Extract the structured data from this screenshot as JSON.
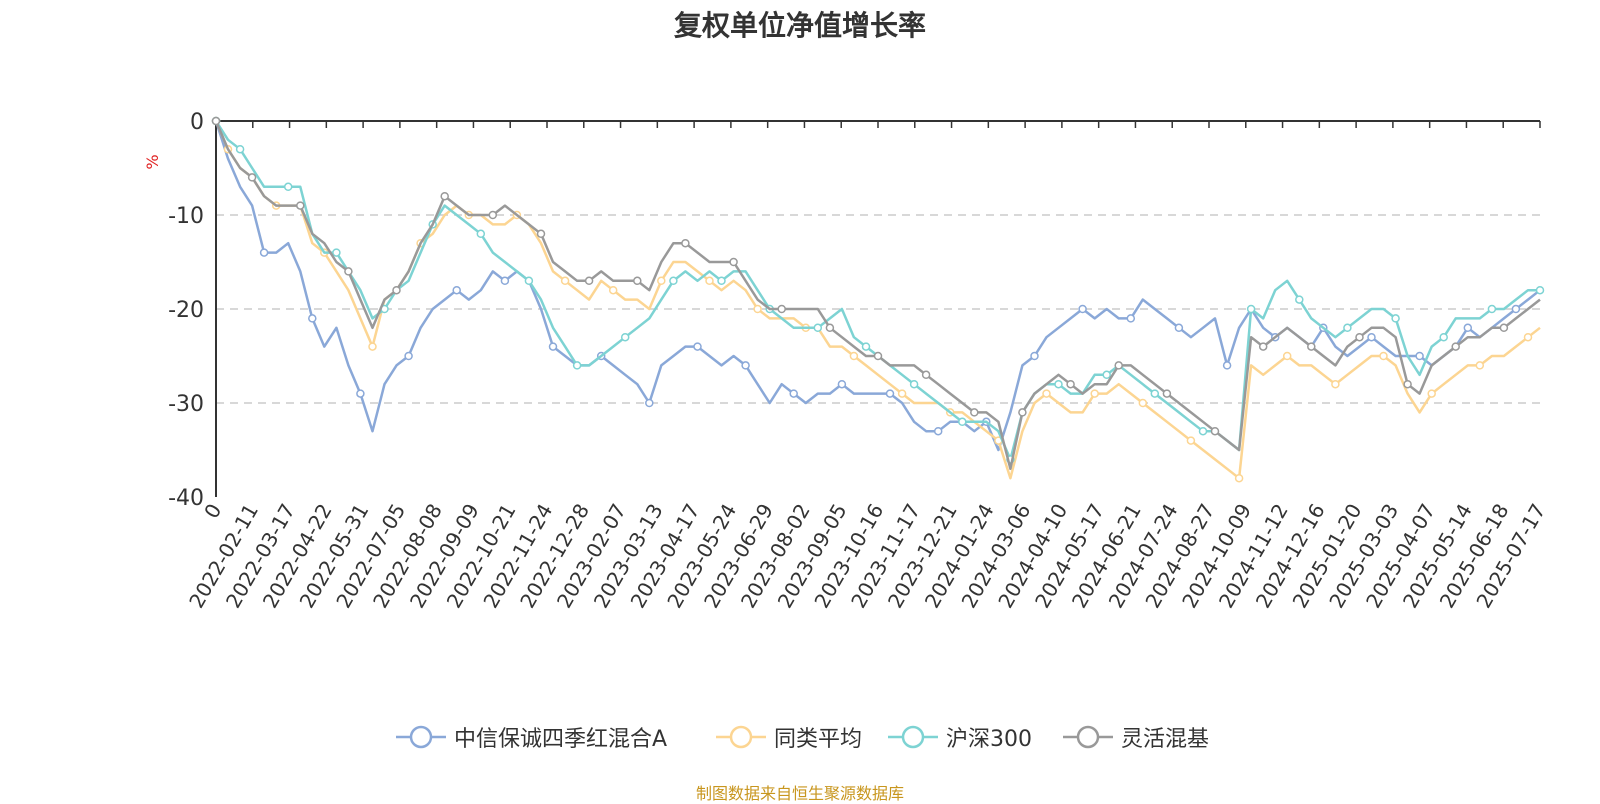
{
  "title": "复权单位净值增长率",
  "source_note": "制图数据来自恒生聚源数据库",
  "chart_data": {
    "type": "line",
    "title": "复权单位净值增长率",
    "ylabel": "%",
    "ylim": [
      -40,
      0
    ],
    "yticks": [
      0,
      -10,
      -20,
      -30,
      -40
    ],
    "grid": true,
    "legend_position": "bottom",
    "x_tick_labels": [
      "0",
      "2022-02-11",
      "2022-03-17",
      "2022-04-22",
      "2022-05-31",
      "2022-07-05",
      "2022-08-08",
      "2022-09-09",
      "2022-10-21",
      "2022-11-24",
      "2022-12-28",
      "2023-02-07",
      "2023-03-13",
      "2023-04-17",
      "2023-05-24",
      "2023-06-29",
      "2023-08-02",
      "2023-09-05",
      "2023-10-16",
      "2023-11-17",
      "2023-12-21",
      "2024-01-24",
      "2024-03-06",
      "2024-04-10",
      "2024-05-17",
      "2024-06-21",
      "2024-07-24",
      "2024-08-27",
      "2024-10-09",
      "2024-11-12",
      "2024-12-16",
      "2025-01-20",
      "2025-03-03",
      "2025-04-07",
      "2025-05-14",
      "2025-06-18",
      "2025-07-17"
    ],
    "series": [
      {
        "name": "中信保诚四季红混合A",
        "color": "#8aa8d8",
        "values": [
          0,
          -4,
          -7,
          -9,
          -14,
          -14,
          -13,
          -16,
          -21,
          -24,
          -22,
          -26,
          -29,
          -33,
          -28,
          -26,
          -25,
          -22,
          -20,
          -19,
          -18,
          -19,
          -18,
          -16,
          -17,
          -16,
          -17,
          -20,
          -24,
          -25,
          -26,
          -26,
          -25,
          -26,
          -27,
          -28,
          -30,
          -26,
          -25,
          -24,
          -24,
          -25,
          -26,
          -25,
          -26,
          -28,
          -30,
          -28,
          -29,
          -30,
          -29,
          -29,
          -28,
          -29,
          -29,
          -29,
          -29,
          -30,
          -32,
          -33,
          -33,
          -32,
          -32,
          -33,
          -32,
          -35,
          -31,
          -26,
          -25,
          -23,
          -22,
          -21,
          -20,
          -21,
          -20,
          -21,
          -21,
          -19,
          -20,
          -21,
          -22,
          -23,
          -22,
          -21,
          -26,
          -22,
          -20,
          -22,
          -23,
          -22,
          -23,
          -24,
          -22,
          -24,
          -25,
          -24,
          -23,
          -24,
          -25,
          -25,
          -25,
          -26,
          -25,
          -24,
          -22,
          -23,
          -22,
          -21,
          -20,
          -19,
          -18
        ]
      },
      {
        "name": "同类平均",
        "color": "#fcd592",
        "values": [
          0,
          -3,
          -5,
          -6,
          -8,
          -9,
          -9,
          -9,
          -13,
          -14,
          -16,
          -18,
          -21,
          -24,
          -19,
          -18,
          -16,
          -13,
          -12,
          -10,
          -9,
          -10,
          -10,
          -11,
          -11,
          -10,
          -11,
          -13,
          -16,
          -17,
          -18,
          -19,
          -17,
          -18,
          -19,
          -19,
          -20,
          -17,
          -15,
          -15,
          -16,
          -17,
          -18,
          -17,
          -18,
          -20,
          -21,
          -21,
          -21,
          -22,
          -22,
          -24,
          -24,
          -25,
          -26,
          -27,
          -28,
          -29,
          -30,
          -30,
          -30,
          -31,
          -31,
          -32,
          -33,
          -34,
          -38,
          -33,
          -30,
          -29,
          -30,
          -31,
          -31,
          -29,
          -29,
          -28,
          -29,
          -30,
          -31,
          -32,
          -33,
          -34,
          -35,
          -36,
          -37,
          -38,
          -26,
          -27,
          -26,
          -25,
          -26,
          -26,
          -27,
          -28,
          -27,
          -26,
          -25,
          -25,
          -26,
          -29,
          -31,
          -29,
          -28,
          -27,
          -26,
          -26,
          -25,
          -25,
          -24,
          -23,
          -22
        ]
      },
      {
        "name": "沪深300",
        "color": "#7dd3d3",
        "values": [
          0,
          -2,
          -3,
          -5,
          -7,
          -7,
          -7,
          -7,
          -12,
          -14,
          -14,
          -16,
          -18,
          -21,
          -20,
          -18,
          -17,
          -14,
          -11,
          -9,
          -10,
          -11,
          -12,
          -14,
          -15,
          -16,
          -17,
          -19,
          -22,
          -24,
          -26,
          -26,
          -25,
          -24,
          -23,
          -22,
          -21,
          -19,
          -17,
          -16,
          -17,
          -16,
          -17,
          -16,
          -16,
          -18,
          -20,
          -21,
          -22,
          -22,
          -22,
          -21,
          -20,
          -23,
          -24,
          -25,
          -26,
          -27,
          -28,
          -29,
          -30,
          -31,
          -32,
          -32,
          -32,
          -33,
          -36,
          -31,
          -29,
          -28,
          -28,
          -29,
          -29,
          -27,
          -27,
          -26,
          -27,
          -28,
          -29,
          -30,
          -31,
          -32,
          -33,
          -33,
          -34,
          -35,
          -20,
          -21,
          -18,
          -17,
          -19,
          -21,
          -22,
          -23,
          -22,
          -21,
          -20,
          -20,
          -21,
          -25,
          -27,
          -24,
          -23,
          -21,
          -21,
          -21,
          -20,
          -20,
          -19,
          -18,
          -18
        ]
      },
      {
        "name": "灵活混基",
        "color": "#999999",
        "values": [
          0,
          -3,
          -5,
          -6,
          -8,
          -9,
          -9,
          -9,
          -12,
          -13,
          -15,
          -16,
          -19,
          -22,
          -19,
          -18,
          -16,
          -13,
          -11,
          -8,
          -9,
          -10,
          -10,
          -10,
          -9,
          -10,
          -11,
          -12,
          -15,
          -16,
          -17,
          -17,
          -16,
          -17,
          -17,
          -17,
          -18,
          -15,
          -13,
          -13,
          -14,
          -15,
          -15,
          -15,
          -17,
          -19,
          -20,
          -20,
          -20,
          -20,
          -20,
          -22,
          -23,
          -24,
          -25,
          -25,
          -26,
          -26,
          -26,
          -27,
          -28,
          -29,
          -30,
          -31,
          -31,
          -32,
          -37,
          -31,
          -29,
          -28,
          -27,
          -28,
          -29,
          -28,
          -28,
          -26,
          -26,
          -27,
          -28,
          -29,
          -30,
          -31,
          -32,
          -33,
          -34,
          -35,
          -23,
          -24,
          -23,
          -22,
          -23,
          -24,
          -25,
          -26,
          -24,
          -23,
          -22,
          -22,
          -23,
          -28,
          -29,
          -26,
          -25,
          -24,
          -23,
          -23,
          -22,
          -22,
          -21,
          -20,
          -19
        ]
      }
    ]
  }
}
